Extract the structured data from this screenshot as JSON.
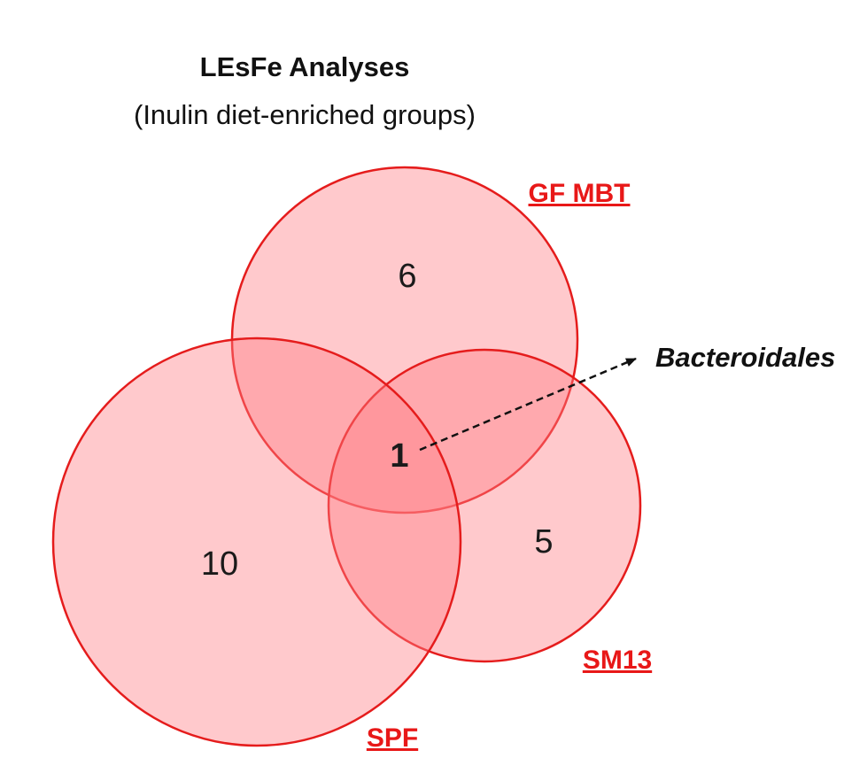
{
  "title": "LEsFe Analyses",
  "subtitle": "(Inulin diet-enriched groups)",
  "sets": {
    "gf_mbt": "GF MBT",
    "sm13": "SM13",
    "spf": "SPF"
  },
  "regions": {
    "gf_mbt_only": "6",
    "spf_only": "10",
    "sm13_only": "5",
    "all_three": "1"
  },
  "annotation": "Bacteroidales",
  "colors": {
    "circle_fill": "#ff7f86",
    "circle_stroke": "#e51c1c",
    "label": "#e81818",
    "arrow": "#111111"
  }
}
